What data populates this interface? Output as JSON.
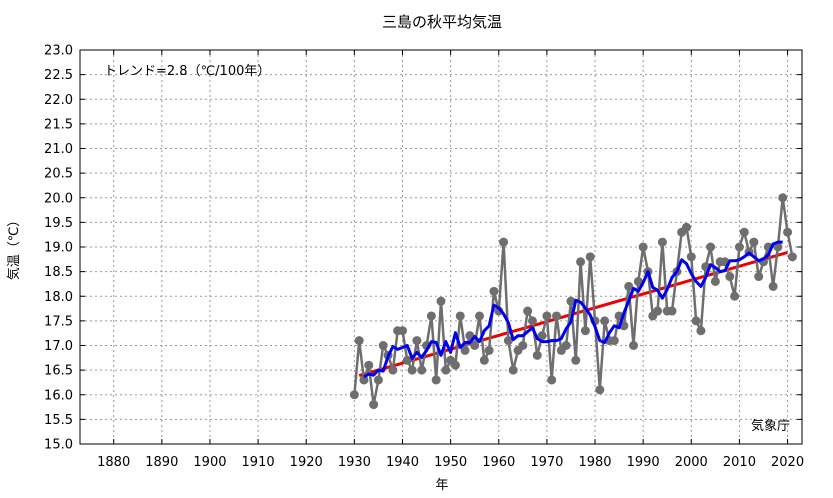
{
  "chart_data": {
    "type": "line",
    "title": "三島の秋平均気温",
    "xlabel": "年",
    "ylabel": "気温（℃）",
    "annotation": "トレンド=2.8（℃/100年）",
    "source": "気象庁",
    "xlim": [
      1873,
      2023
    ],
    "ylim": [
      15.0,
      23.0
    ],
    "x_ticks": [
      1880,
      1890,
      1900,
      1910,
      1920,
      1930,
      1940,
      1950,
      1960,
      1970,
      1980,
      1990,
      2000,
      2010,
      2020
    ],
    "y_ticks": [
      "15.0",
      "15.5",
      "16.0",
      "16.5",
      "17.0",
      "17.5",
      "18.0",
      "18.5",
      "19.0",
      "19.5",
      "20.0",
      "20.5",
      "21.0",
      "21.5",
      "22.0",
      "22.5",
      "23.0"
    ],
    "grid": true,
    "series": [
      {
        "kind": "annual",
        "color": "#6e6e6e",
        "x": [
          1930,
          1931,
          1932,
          1933,
          1934,
          1935,
          1936,
          1937,
          1938,
          1939,
          1940,
          1941,
          1942,
          1943,
          1944,
          1945,
          1946,
          1947,
          1948,
          1949,
          1950,
          1951,
          1952,
          1953,
          1954,
          1955,
          1956,
          1957,
          1958,
          1959,
          1960,
          1961,
          1962,
          1963,
          1964,
          1965,
          1966,
          1967,
          1968,
          1969,
          1970,
          1971,
          1972,
          1973,
          1974,
          1975,
          1976,
          1977,
          1978,
          1979,
          1980,
          1981,
          1982,
          1983,
          1984,
          1985,
          1986,
          1987,
          1988,
          1989,
          1990,
          1991,
          1992,
          1993,
          1994,
          1995,
          1996,
          1997,
          1998,
          1999,
          2000,
          2001,
          2002,
          2003,
          2004,
          2005,
          2006,
          2007,
          2008,
          2009,
          2010,
          2011,
          2012,
          2013,
          2014,
          2015,
          2016,
          2017,
          2018,
          2019,
          2020,
          2021
        ],
        "values": [
          16.0,
          17.1,
          16.3,
          16.6,
          15.8,
          16.3,
          17.0,
          16.8,
          16.5,
          17.3,
          17.3,
          16.7,
          16.5,
          17.1,
          16.5,
          17.0,
          17.6,
          16.3,
          17.9,
          16.5,
          16.7,
          16.6,
          17.6,
          16.9,
          17.2,
          17.0,
          17.6,
          16.7,
          16.9,
          18.1,
          17.7,
          19.1,
          17.1,
          16.5,
          16.9,
          17.0,
          17.7,
          17.5,
          16.8,
          17.2,
          17.6,
          16.3,
          17.6,
          16.9,
          17.0,
          17.9,
          16.7,
          18.7,
          17.3,
          18.8,
          17.5,
          16.1,
          17.5,
          17.1,
          17.1,
          17.6,
          17.4,
          18.2,
          17.0,
          18.3,
          19.0,
          18.5,
          17.6,
          17.7,
          19.1,
          17.7,
          17.7,
          18.5,
          19.3,
          19.4,
          18.8,
          17.5,
          17.3,
          18.6,
          19.0,
          18.3,
          18.7,
          18.7,
          18.4,
          18.0,
          19.0,
          19.3,
          18.9,
          19.1,
          18.4,
          18.7,
          19.0,
          18.2,
          19.0,
          20.0,
          19.3,
          18.8
        ]
      },
      {
        "kind": "5-year running mean",
        "color": "#0000ee",
        "x": [
          1932,
          1933,
          1934,
          1935,
          1936,
          1937,
          1938,
          1939,
          1940,
          1941,
          1942,
          1943,
          1944,
          1945,
          1946,
          1947,
          1948,
          1949,
          1950,
          1951,
          1952,
          1953,
          1954,
          1955,
          1956,
          1957,
          1958,
          1959,
          1960,
          1961,
          1962,
          1963,
          1964,
          1965,
          1966,
          1967,
          1968,
          1969,
          1970,
          1971,
          1972,
          1973,
          1974,
          1975,
          1976,
          1977,
          1978,
          1979,
          1980,
          1981,
          1982,
          1983,
          1984,
          1985,
          1986,
          1987,
          1988,
          1989,
          1990,
          1991,
          1992,
          1993,
          1994,
          1995,
          1996,
          1997,
          1998,
          1999,
          2000,
          2001,
          2002,
          2003,
          2004,
          2005,
          2006,
          2007,
          2008,
          2009,
          2010,
          2011,
          2012,
          2013,
          2014,
          2015,
          2016,
          2017,
          2018,
          2019
        ],
        "values": [
          16.36,
          16.42,
          16.4,
          16.5,
          16.48,
          16.78,
          16.98,
          16.92,
          16.96,
          17.0,
          16.74,
          16.86,
          16.76,
          16.9,
          17.08,
          17.06,
          16.8,
          17.08,
          16.86,
          17.26,
          16.96,
          17.06,
          17.06,
          17.18,
          17.08,
          17.3,
          17.4,
          17.82,
          17.76,
          17.64,
          17.46,
          17.12,
          17.2,
          17.2,
          17.28,
          17.36,
          17.14,
          17.08,
          17.08,
          17.1,
          17.1,
          17.14,
          17.34,
          17.48,
          17.92,
          17.88,
          17.76,
          17.62,
          17.38,
          17.1,
          17.06,
          17.26,
          17.4,
          17.36,
          17.66,
          17.9,
          18.16,
          18.1,
          18.28,
          18.5,
          18.18,
          18.12,
          17.96,
          18.14,
          18.38,
          18.5,
          18.74,
          18.66,
          18.46,
          18.3,
          18.2,
          18.38,
          18.64,
          18.58,
          18.5,
          18.52,
          18.72,
          18.72,
          18.74,
          18.8,
          18.88,
          18.8,
          18.72,
          18.76,
          18.84,
          19.06,
          19.1,
          19.1
        ]
      },
      {
        "kind": "trend",
        "color": "#ee0000",
        "x": [
          1931,
          2020
        ],
        "values": [
          16.39,
          18.89
        ]
      }
    ]
  }
}
